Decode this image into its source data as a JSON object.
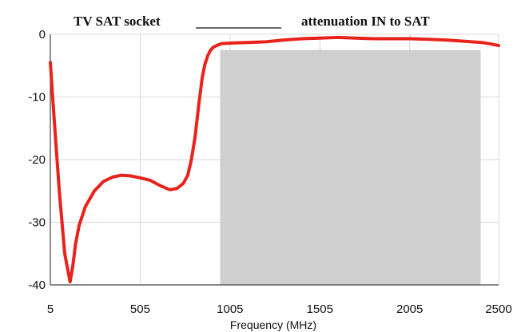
{
  "chart_data": {
    "type": "line",
    "title_left": "TV  SAT socket",
    "title_right": "attenuation IN to SAT",
    "xlabel": "Frequency (MHz)",
    "ylabel": "",
    "xlim": [
      5,
      2500
    ],
    "ylim": [
      -40,
      0
    ],
    "x_ticks": [
      5,
      505,
      1005,
      1505,
      2005,
      2500
    ],
    "x_tick_labels": [
      "5",
      "505",
      "1005",
      "1505",
      "2005",
      "2500"
    ],
    "y_ticks": [
      0,
      -10,
      -20,
      -30,
      -40
    ],
    "y_tick_labels": [
      "0",
      "-10",
      "-20",
      "-30",
      "-40"
    ],
    "grid": true,
    "band": {
      "x_start": 950,
      "x_end": 2400,
      "y_top": -2.5,
      "y_bottom": -40,
      "color": "#cfcfcf"
    },
    "series": [
      {
        "color": "#e8231c",
        "x": [
          5,
          25,
          55,
          85,
          115,
          130,
          145,
          165,
          200,
          250,
          300,
          350,
          400,
          450,
          505,
          560,
          620,
          670,
          710,
          745,
          770,
          790,
          810,
          830,
          850,
          865,
          880,
          895,
          910,
          930,
          955,
          1005,
          1100,
          1205,
          1305,
          1405,
          1505,
          1605,
          1705,
          1805,
          1905,
          2005,
          2105,
          2205,
          2305,
          2405,
          2450,
          2500
        ],
        "y": [
          -4.5,
          -13,
          -25,
          -35,
          -39.5,
          -37,
          -33.5,
          -30.5,
          -27.5,
          -25,
          -23.5,
          -22.8,
          -22.5,
          -22.6,
          -22.9,
          -23.3,
          -24.2,
          -24.8,
          -24.6,
          -23.8,
          -22.5,
          -20,
          -16.5,
          -11.5,
          -7,
          -4.8,
          -3.5,
          -2.6,
          -2.1,
          -1.8,
          -1.5,
          -1.4,
          -1.3,
          -1.2,
          -0.9,
          -0.7,
          -0.6,
          -0.5,
          -0.6,
          -0.7,
          -0.7,
          -0.7,
          -0.8,
          -0.9,
          -1.1,
          -1.3,
          -1.5,
          -1.8
        ]
      }
    ]
  }
}
